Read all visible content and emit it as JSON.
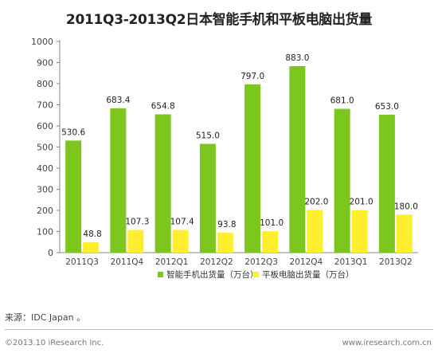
{
  "chart_data": {
    "type": "bar",
    "title": "2011Q3-2013Q2日本智能手机和平板电脑出货量",
    "categories": [
      "2011Q3",
      "2011Q4",
      "2012Q1",
      "2012Q2",
      "2012Q3",
      "2012Q4",
      "2013Q1",
      "2013Q2"
    ],
    "series": [
      {
        "name": "智能手机出货量（万台）",
        "color": "#7dc61e",
        "values": [
          530.6,
          683.4,
          654.8,
          515.0,
          797.0,
          883.0,
          681.0,
          653.0
        ],
        "labels": [
          "530.6",
          "683.4",
          "654.8",
          "515.0",
          "797.0",
          "883.0",
          "681.0",
          "653.0"
        ]
      },
      {
        "name": "平板电脑出货量（万台）",
        "color": "#ffee2e",
        "values": [
          48.8,
          107.3,
          107.4,
          93.8,
          101.0,
          202.0,
          201.0,
          180.0
        ],
        "labels": [
          "48.8",
          "107.3",
          "107.4",
          "93.8",
          "101.0",
          "202.0",
          "201.0",
          "180.0"
        ]
      }
    ],
    "ylim": [
      0,
      1000
    ],
    "yticks": [
      0,
      100,
      200,
      300,
      400,
      500,
      600,
      700,
      800,
      900,
      1000
    ],
    "grid": false,
    "legend_position": "bottom"
  },
  "footer": {
    "source": "来源：IDC Japan 。",
    "copyright": "©2013.10 iResearch Inc.",
    "website": "www.iresearch.com.cn"
  }
}
